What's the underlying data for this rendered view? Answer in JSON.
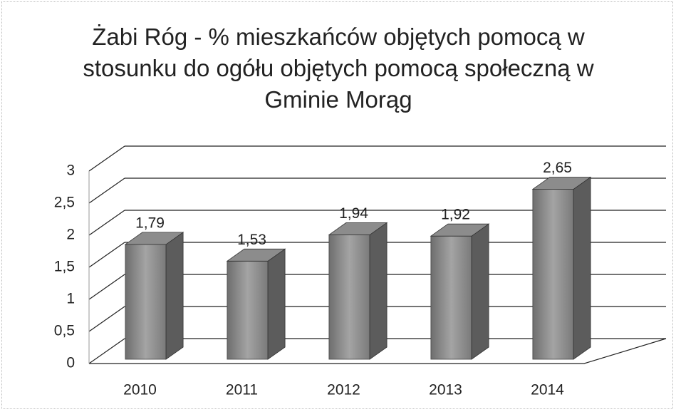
{
  "chart_data": {
    "type": "bar3d",
    "title": "Żabi Róg - % mieszkańców objętych pomocą w stosunku do ogółu objętych pomocą społeczną w Gminie Morąg",
    "categories": [
      "2010",
      "2011",
      "2012",
      "2013",
      "2014"
    ],
    "values": [
      1.79,
      1.53,
      1.94,
      1.92,
      2.65
    ],
    "value_labels": [
      "1,79",
      "1,53",
      "1,94",
      "1,92",
      "2,65"
    ],
    "color": "#8c8c8c",
    "ylim": [
      0,
      3
    ],
    "yticks": [
      0,
      {
        "value": 0.5,
        "label": "0,5"
      },
      1,
      {
        "value": 1.5,
        "label": "1,5"
      },
      2,
      {
        "value": 2.5,
        "label": "2,5"
      },
      3
    ],
    "grid": true
  }
}
